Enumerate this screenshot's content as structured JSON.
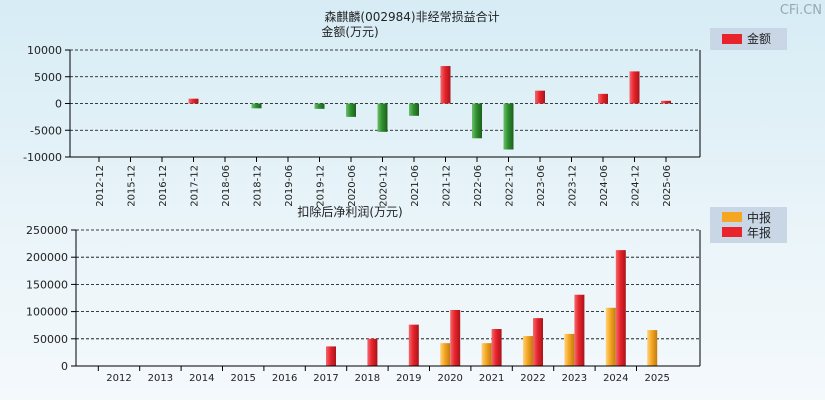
{
  "watermark": "CFi.CN",
  "colors": {
    "red": "#e8232b",
    "green": "#2f8f2f",
    "orange": "#f5a623",
    "legend_bg": "#c8d6e6"
  },
  "chart_data": [
    {
      "type": "bar",
      "title": "森麒麟(002984)非经常损益合计",
      "subtitle": "金额(万元)",
      "legend": [
        {
          "name": "金额",
          "color": "#e8232b"
        }
      ],
      "legend_position": "top-right",
      "categories": [
        "2012-12",
        "2015-12",
        "2016-12",
        "2017-12",
        "2018-06",
        "2018-12",
        "2019-06",
        "2019-12",
        "2020-06",
        "2020-12",
        "2021-06",
        "2021-12",
        "2022-06",
        "2022-12",
        "2023-06",
        "2023-12",
        "2024-06",
        "2024-12",
        "2025-06"
      ],
      "series": [
        {
          "name": "金额",
          "values": [
            0,
            0,
            0,
            900,
            0,
            -900,
            0,
            -1000,
            -2500,
            -5300,
            -2300,
            7000,
            -6500,
            -8600,
            2400,
            0,
            1800,
            6000,
            500
          ]
        }
      ],
      "ylim": [
        -10000,
        10000
      ],
      "yticks": [
        "10000",
        "5000",
        "0",
        "-5000",
        "-10000"
      ],
      "grid": true
    },
    {
      "type": "bar",
      "title": "扣除后净利润(万元)",
      "legend": [
        {
          "name": "中报",
          "color": "#f5a623"
        },
        {
          "name": "年报",
          "color": "#e8232b"
        }
      ],
      "legend_position": "top-right",
      "categories": [
        "2012",
        "2013",
        "2014",
        "2015",
        "2016",
        "2017",
        "2018",
        "2019",
        "2020",
        "2021",
        "2022",
        "2023",
        "2024",
        "2025"
      ],
      "series": [
        {
          "name": "中报",
          "values": [
            0,
            0,
            0,
            0,
            0,
            0,
            0,
            0,
            42000,
            42000,
            55000,
            59000,
            107000,
            66000
          ]
        },
        {
          "name": "年报",
          "values": [
            0,
            0,
            0,
            0,
            0,
            36000,
            50000,
            76000,
            103000,
            68000,
            88000,
            131000,
            213000,
            0
          ]
        }
      ],
      "ylim": [
        0,
        250000
      ],
      "yticks": [
        "250000",
        "200000",
        "150000",
        "100000",
        "50000",
        "0"
      ],
      "grid": true
    }
  ]
}
